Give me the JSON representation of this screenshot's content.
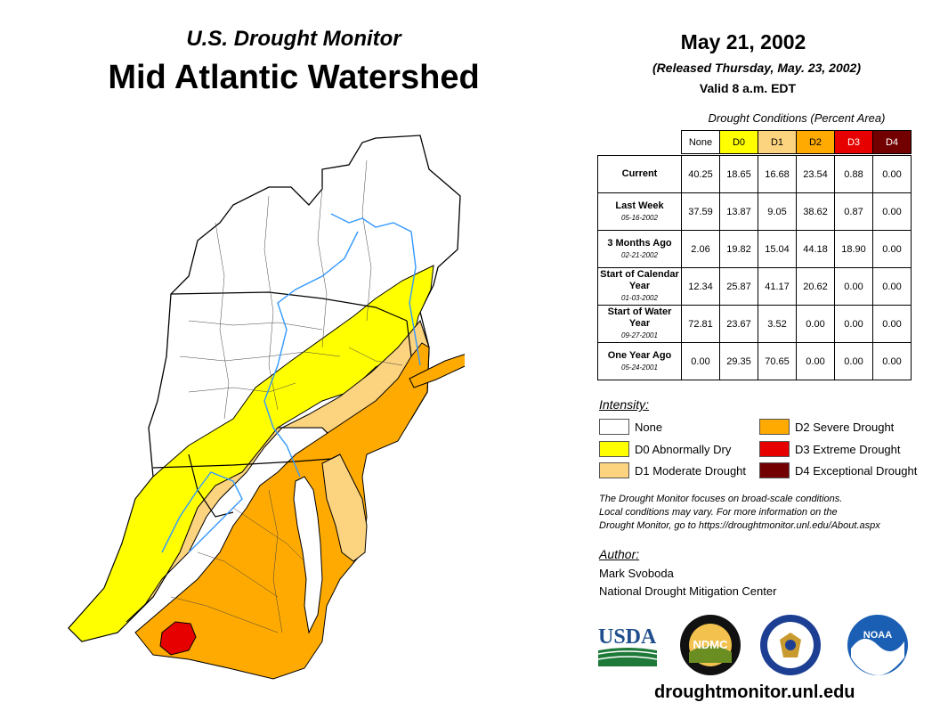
{
  "header": {
    "subtitle": "U.S. Drought Monitor",
    "title": "Mid Atlantic Watershed",
    "date": "May 21, 2002",
    "released": "(Released Thursday, May. 23, 2002)",
    "valid": "Valid 8 a.m. EDT"
  },
  "table": {
    "caption": "Drought Conditions (Percent Area)",
    "columns": [
      "None",
      "D0",
      "D1",
      "D2",
      "D3",
      "D4"
    ],
    "column_colors": [
      "#ffffff",
      "#ffff00",
      "#fcd37f",
      "#ffaa00",
      "#e60000",
      "#730000"
    ],
    "rows": [
      {
        "label": "Current",
        "sub": "",
        "values": [
          "40.25",
          "18.65",
          "16.68",
          "23.54",
          "0.88",
          "0.00"
        ]
      },
      {
        "label": "Last Week",
        "sub": "05-16-2002",
        "values": [
          "37.59",
          "13.87",
          "9.05",
          "38.62",
          "0.87",
          "0.00"
        ]
      },
      {
        "label": "3 Months Ago",
        "sub": "02-21-2002",
        "values": [
          "2.06",
          "19.82",
          "15.04",
          "44.18",
          "18.90",
          "0.00"
        ]
      },
      {
        "label": "Start of Calendar Year",
        "sub": "01-03-2002",
        "values": [
          "12.34",
          "25.87",
          "41.17",
          "20.62",
          "0.00",
          "0.00"
        ]
      },
      {
        "label": "Start of Water Year",
        "sub": "09-27-2001",
        "values": [
          "72.81",
          "23.67",
          "3.52",
          "0.00",
          "0.00",
          "0.00"
        ]
      },
      {
        "label": "One Year Ago",
        "sub": "05-24-2001",
        "values": [
          "0.00",
          "29.35",
          "70.65",
          "0.00",
          "0.00",
          "0.00"
        ]
      }
    ]
  },
  "legend": {
    "title": "Intensity:",
    "items": [
      {
        "label": "None",
        "color": "#ffffff"
      },
      {
        "label": "D0 Abnormally Dry",
        "color": "#ffff00"
      },
      {
        "label": "D1 Moderate Drought",
        "color": "#fcd37f"
      },
      {
        "label": "D2 Severe Drought",
        "color": "#ffaa00"
      },
      {
        "label": "D3 Extreme Drought",
        "color": "#e60000"
      },
      {
        "label": "D4 Exceptional Drought",
        "color": "#730000"
      }
    ]
  },
  "note": {
    "line1": "The Drought Monitor focuses on broad-scale conditions.",
    "line2": "Local conditions may vary. For more information on the",
    "line3": "Drought Monitor, go to https://droughtmonitor.unl.edu/About.aspx"
  },
  "author": {
    "title": "Author:",
    "name": "Mark Svoboda",
    "org": "National Drought Mitigation Center"
  },
  "logos": {
    "usda": "USDA",
    "ndmc": "NDMC",
    "noaa": "NOAA"
  },
  "footer": {
    "url": "droughtmonitor.unl.edu"
  },
  "icons": [
    "usda-logo-icon",
    "ndmc-logo-icon",
    "commerce-seal-icon",
    "noaa-logo-icon"
  ]
}
